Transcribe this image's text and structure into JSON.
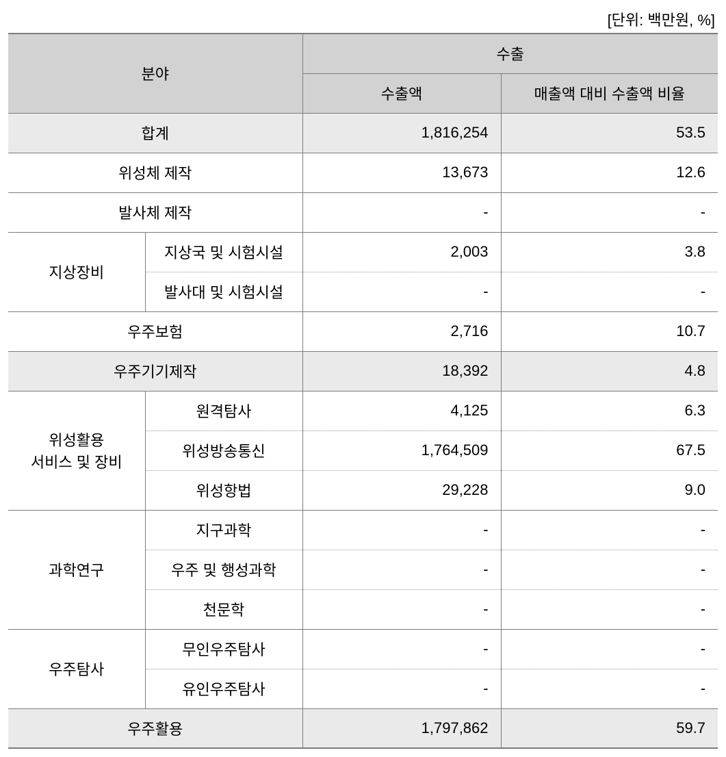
{
  "unit_label": "[단위: 백만원, %]",
  "header": {
    "field": "분야",
    "export": "수출",
    "amount": "수출액",
    "ratio": "매출액 대비 수출액 비율"
  },
  "rows": {
    "total": {
      "label": "합계",
      "amount": "1,816,254",
      "ratio": "53.5"
    },
    "sat_mfg": {
      "label": "위성체 제작",
      "amount": "13,673",
      "ratio": "12.6"
    },
    "lv_mfg": {
      "label": "발사체 제작",
      "amount": "-",
      "ratio": "-"
    },
    "ground": {
      "label": "지상장비",
      "sub1": {
        "label": "지상국 및 시험시설",
        "amount": "2,003",
        "ratio": "3.8"
      },
      "sub2": {
        "label": "발사대 및 시험시설",
        "amount": "-",
        "ratio": "-"
      }
    },
    "ins": {
      "label": "우주보험",
      "amount": "2,716",
      "ratio": "10.7"
    },
    "equip": {
      "label": "우주기기제작",
      "amount": "18,392",
      "ratio": "4.8"
    },
    "svc": {
      "label": "위성활용\n서비스 및 장비",
      "sub1": {
        "label": "원격탐사",
        "amount": "4,125",
        "ratio": "6.3"
      },
      "sub2": {
        "label": "위성방송통신",
        "amount": "1,764,509",
        "ratio": "67.5"
      },
      "sub3": {
        "label": "위성항법",
        "amount": "29,228",
        "ratio": "9.0"
      }
    },
    "sci": {
      "label": "과학연구",
      "sub1": {
        "label": "지구과학",
        "amount": "-",
        "ratio": "-"
      },
      "sub2": {
        "label": "우주 및 행성과학",
        "amount": "-",
        "ratio": "-"
      },
      "sub3": {
        "label": "천문학",
        "amount": "-",
        "ratio": "-"
      }
    },
    "exp": {
      "label": "우주탐사",
      "sub1": {
        "label": "무인우주탐사",
        "amount": "-",
        "ratio": "-"
      },
      "sub2": {
        "label": "유인우주탐사",
        "amount": "-",
        "ratio": "-"
      }
    },
    "use": {
      "label": "우주활용",
      "amount": "1,797,862",
      "ratio": "59.7"
    }
  }
}
